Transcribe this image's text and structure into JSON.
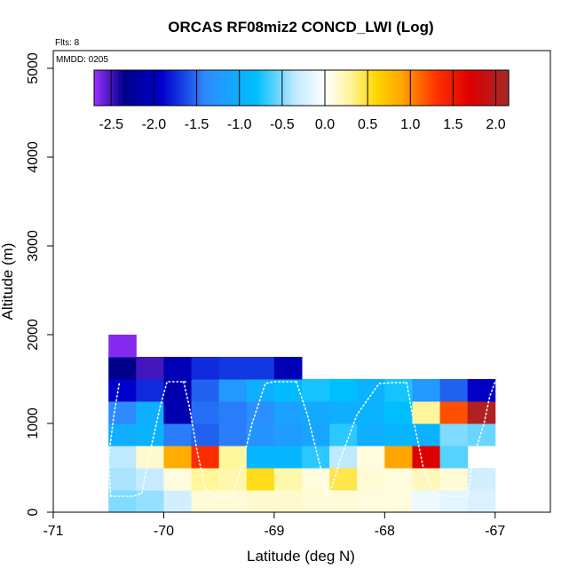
{
  "chart_data": {
    "type": "heatmap",
    "title": "ORCAS RF08miz2 CONCD_LWI (Log)",
    "xlabel": "Latitude (deg N)",
    "ylabel": "Altitude (m)",
    "xlim": [
      -71,
      -66.5
    ],
    "ylim": [
      0,
      5200
    ],
    "x_ticks": [
      -71,
      -70,
      -69,
      -68,
      -67
    ],
    "y_ticks": [
      0,
      1000,
      2000,
      3000,
      4000,
      5000
    ],
    "annotations": {
      "flights": "Flts: 8",
      "date": "MMDD: 0205"
    },
    "colorbar": {
      "range": [
        -2.7,
        2.15
      ],
      "tick_values": [
        -2.5,
        -2.0,
        -1.5,
        -1.0,
        -0.5,
        0.0,
        0.5,
        1.0,
        1.5,
        2.0
      ],
      "tick_labels": [
        "-2.5",
        "-2.0",
        "-1.5",
        "-1.0",
        "-0.5",
        "0.0",
        "0.5",
        "1.0",
        "1.5",
        "2.0"
      ],
      "stops": [
        {
          "v": -2.7,
          "c": "#9b30ff"
        },
        {
          "v": -2.35,
          "c": "#00008b"
        },
        {
          "v": -1.9,
          "c": "#0000cd"
        },
        {
          "v": -1.4,
          "c": "#2e8bff"
        },
        {
          "v": -0.8,
          "c": "#00bfff"
        },
        {
          "v": -0.35,
          "c": "#bfe9ff"
        },
        {
          "v": 0.0,
          "c": "#ffffff"
        },
        {
          "v": 0.3,
          "c": "#fff59a"
        },
        {
          "v": 0.6,
          "c": "#ffd700"
        },
        {
          "v": 0.9,
          "c": "#ffa500"
        },
        {
          "v": 1.3,
          "c": "#ff3300"
        },
        {
          "v": 1.7,
          "c": "#dd0000"
        },
        {
          "v": 2.15,
          "c": "#a52a2a"
        }
      ]
    },
    "cell_size": {
      "lat": 0.25,
      "alt": 250
    },
    "cells": [
      {
        "lat": -70.5,
        "alt": 0,
        "value": -0.5
      },
      {
        "lat": -70.25,
        "alt": 0,
        "value": -0.45
      },
      {
        "lat": -70.0,
        "alt": 0,
        "value": -0.25
      },
      {
        "lat": -69.75,
        "alt": 0,
        "value": 0.12
      },
      {
        "lat": -69.5,
        "alt": 0,
        "value": 0.12
      },
      {
        "lat": -69.25,
        "alt": 0,
        "value": 0.15
      },
      {
        "lat": -69.0,
        "alt": 0,
        "value": 0.15
      },
      {
        "lat": -68.75,
        "alt": 0,
        "value": 0.12
      },
      {
        "lat": -68.5,
        "alt": 0,
        "value": 0.12
      },
      {
        "lat": -68.25,
        "alt": 0,
        "value": 0.1
      },
      {
        "lat": -68.0,
        "alt": 0,
        "value": 0.1
      },
      {
        "lat": -67.75,
        "alt": 0,
        "value": -0.1
      },
      {
        "lat": -67.5,
        "alt": 0,
        "value": -0.15
      },
      {
        "lat": -67.25,
        "alt": 0,
        "value": -0.2
      },
      {
        "lat": -70.5,
        "alt": 250,
        "value": -0.4
      },
      {
        "lat": -70.25,
        "alt": 250,
        "value": -0.3
      },
      {
        "lat": -70.0,
        "alt": 250,
        "value": 0.1
      },
      {
        "lat": -69.75,
        "alt": 250,
        "value": 0.3
      },
      {
        "lat": -69.5,
        "alt": 250,
        "value": 0.25
      },
      {
        "lat": -69.25,
        "alt": 250,
        "value": 0.55
      },
      {
        "lat": -69.0,
        "alt": 250,
        "value": 0.25
      },
      {
        "lat": -68.75,
        "alt": 250,
        "value": 0.1
      },
      {
        "lat": -68.5,
        "alt": 250,
        "value": 0.45
      },
      {
        "lat": -68.25,
        "alt": 250,
        "value": 0.12
      },
      {
        "lat": -68.0,
        "alt": 250,
        "value": 0.1
      },
      {
        "lat": -67.75,
        "alt": 250,
        "value": 0.2
      },
      {
        "lat": -67.5,
        "alt": 250,
        "value": 0.12
      },
      {
        "lat": -67.25,
        "alt": 250,
        "value": -0.25
      },
      {
        "lat": -70.5,
        "alt": 500,
        "value": -0.35
      },
      {
        "lat": -70.25,
        "alt": 500,
        "value": 0.15
      },
      {
        "lat": -70.0,
        "alt": 500,
        "value": 0.85
      },
      {
        "lat": -69.75,
        "alt": 500,
        "value": 1.35
      },
      {
        "lat": -69.5,
        "alt": 500,
        "value": 0.3
      },
      {
        "lat": -69.25,
        "alt": 500,
        "value": -0.9
      },
      {
        "lat": -69.0,
        "alt": 500,
        "value": -0.9
      },
      {
        "lat": -68.75,
        "alt": 500,
        "value": -0.7
      },
      {
        "lat": -68.5,
        "alt": 500,
        "value": -0.35
      },
      {
        "lat": -68.25,
        "alt": 500,
        "value": 0.1
      },
      {
        "lat": -68.0,
        "alt": 500,
        "value": 0.9
      },
      {
        "lat": -67.75,
        "alt": 500,
        "value": 1.7
      },
      {
        "lat": -67.5,
        "alt": 500,
        "value": -0.6
      },
      {
        "lat": -70.5,
        "alt": 750,
        "value": -1.0
      },
      {
        "lat": -70.25,
        "alt": 750,
        "value": -0.95
      },
      {
        "lat": -70.0,
        "alt": 750,
        "value": -1.45
      },
      {
        "lat": -69.75,
        "alt": 750,
        "value": -1.55
      },
      {
        "lat": -69.5,
        "alt": 750,
        "value": -1.45
      },
      {
        "lat": -69.25,
        "alt": 750,
        "value": -1.3
      },
      {
        "lat": -69.0,
        "alt": 750,
        "value": -1.2
      },
      {
        "lat": -68.75,
        "alt": 750,
        "value": -1.1
      },
      {
        "lat": -68.5,
        "alt": 750,
        "value": -0.7
      },
      {
        "lat": -68.25,
        "alt": 750,
        "value": -1.0
      },
      {
        "lat": -68.0,
        "alt": 750,
        "value": -0.9
      },
      {
        "lat": -67.75,
        "alt": 750,
        "value": -0.95
      },
      {
        "lat": -67.5,
        "alt": 750,
        "value": -0.5
      },
      {
        "lat": -67.25,
        "alt": 750,
        "value": -0.55
      },
      {
        "lat": -70.5,
        "alt": 1000,
        "value": -1.4
      },
      {
        "lat": -70.25,
        "alt": 1000,
        "value": -1.0
      },
      {
        "lat": -70.0,
        "alt": 1000,
        "value": -2.1
      },
      {
        "lat": -69.75,
        "alt": 1000,
        "value": -1.5
      },
      {
        "lat": -69.5,
        "alt": 1000,
        "value": -1.45
      },
      {
        "lat": -69.25,
        "alt": 1000,
        "value": -1.35
      },
      {
        "lat": -69.0,
        "alt": 1000,
        "value": -1.15
      },
      {
        "lat": -68.75,
        "alt": 1000,
        "value": -1.05
      },
      {
        "lat": -68.5,
        "alt": 1000,
        "value": -1.0
      },
      {
        "lat": -68.25,
        "alt": 1000,
        "value": -0.95
      },
      {
        "lat": -68.0,
        "alt": 1000,
        "value": -0.8
      },
      {
        "lat": -67.75,
        "alt": 1000,
        "value": 0.3
      },
      {
        "lat": -67.5,
        "alt": 1000,
        "value": 1.2
      },
      {
        "lat": -67.25,
        "alt": 1000,
        "value": 2.05
      },
      {
        "lat": -70.5,
        "alt": 1250,
        "value": -1.9
      },
      {
        "lat": -70.25,
        "alt": 1250,
        "value": -1.75
      },
      {
        "lat": -70.0,
        "alt": 1250,
        "value": -2.1
      },
      {
        "lat": -69.75,
        "alt": 1250,
        "value": -1.55
      },
      {
        "lat": -69.5,
        "alt": 1250,
        "value": -1.25
      },
      {
        "lat": -69.25,
        "alt": 1250,
        "value": -1.0
      },
      {
        "lat": -69.0,
        "alt": 1250,
        "value": -0.85
      },
      {
        "lat": -68.75,
        "alt": 1250,
        "value": -0.75
      },
      {
        "lat": -68.5,
        "alt": 1250,
        "value": -0.8
      },
      {
        "lat": -68.25,
        "alt": 1250,
        "value": -0.95
      },
      {
        "lat": -68.0,
        "alt": 1250,
        "value": -0.75
      },
      {
        "lat": -67.75,
        "alt": 1250,
        "value": -1.25
      },
      {
        "lat": -67.5,
        "alt": 1250,
        "value": -1.55
      },
      {
        "lat": -67.25,
        "alt": 1250,
        "value": -1.95
      },
      {
        "lat": -70.5,
        "alt": 1500,
        "value": -2.35
      },
      {
        "lat": -70.25,
        "alt": 1500,
        "value": -2.5
      },
      {
        "lat": -70.0,
        "alt": 1500,
        "value": -2.05
      },
      {
        "lat": -69.75,
        "alt": 1500,
        "value": -1.75
      },
      {
        "lat": -69.5,
        "alt": 1500,
        "value": -1.7
      },
      {
        "lat": -69.25,
        "alt": 1500,
        "value": -1.7
      },
      {
        "lat": -69.0,
        "alt": 1500,
        "value": -2.05
      },
      {
        "lat": -70.5,
        "alt": 1750,
        "value": -2.65
      }
    ],
    "track": {
      "segments": [
        [
          [
            -70.48,
            180
          ],
          [
            -70.35,
            180
          ],
          [
            -70.28,
            180
          ],
          [
            -70.2,
            210
          ],
          [
            -70.12,
            700
          ],
          [
            -70.03,
            1200
          ],
          [
            -69.97,
            1470
          ],
          [
            -69.8,
            1470
          ]
        ],
        [
          [
            -69.82,
            1470
          ],
          [
            -69.77,
            1200
          ],
          [
            -69.7,
            700
          ],
          [
            -69.62,
            250
          ],
          [
            -69.5,
            170
          ],
          [
            -69.38,
            170
          ]
        ],
        [
          [
            -69.38,
            170
          ],
          [
            -69.3,
            500
          ],
          [
            -69.2,
            1000
          ],
          [
            -69.08,
            1450
          ],
          [
            -69.0,
            1470
          ],
          [
            -68.8,
            1470
          ]
        ],
        [
          [
            -68.8,
            1470
          ],
          [
            -68.7,
            1100
          ],
          [
            -68.6,
            600
          ],
          [
            -68.52,
            200
          ],
          [
            -68.5,
            190
          ]
        ],
        [
          [
            -68.5,
            190
          ],
          [
            -68.4,
            600
          ],
          [
            -68.25,
            1100
          ],
          [
            -68.05,
            1450
          ],
          [
            -67.9,
            1460
          ],
          [
            -67.8,
            1460
          ]
        ],
        [
          [
            -67.8,
            1460
          ],
          [
            -67.75,
            1100
          ],
          [
            -67.65,
            500
          ],
          [
            -67.55,
            200
          ],
          [
            -67.35,
            170
          ],
          [
            -67.25,
            180
          ]
        ],
        [
          [
            -67.25,
            180
          ],
          [
            -67.2,
            600
          ],
          [
            -67.1,
            1000
          ],
          [
            -67.05,
            1300
          ],
          [
            -67.0,
            1470
          ]
        ],
        [
          [
            -70.48,
            180
          ],
          [
            -70.5,
            600
          ],
          [
            -70.45,
            1100
          ],
          [
            -70.4,
            1470
          ]
        ]
      ]
    }
  }
}
